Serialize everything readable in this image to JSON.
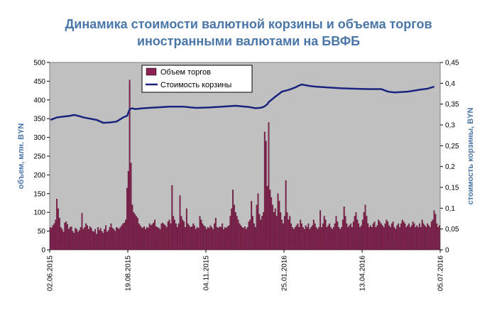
{
  "chart_data": {
    "type": "bar+line",
    "title_line1": "Динамика стоимости валютной корзины и объема торгов",
    "title_line2": "иностранными валютами на БВФБ",
    "ylabel_left": "объем, млн. BYN",
    "ylabel_right": "стоимость корзины, BYN",
    "y_left_ticks": [
      "0",
      "50",
      "100",
      "150",
      "200",
      "250",
      "300",
      "350",
      "400",
      "450",
      "500"
    ],
    "y_right_ticks": [
      "0",
      "0,05",
      "0,1",
      "0,15",
      "0,2",
      "0,25",
      "0,3",
      "0,35",
      "0,4",
      "0,45"
    ],
    "x_ticks": [
      "02.06.2015",
      "19.08.2015",
      "04.11.2015",
      "25.01.2016",
      "13.04.2016",
      "05.07.2016"
    ],
    "ylim_left": [
      0,
      500
    ],
    "ylim_right": [
      0,
      0.45
    ],
    "grid": false,
    "legend_position": "top-left",
    "series": [
      {
        "name": "Объем торгов",
        "type": "bar",
        "axis": "left",
        "color": "#8b2252",
        "values": [
          60,
          58,
          65,
          70,
          80,
          136,
          110,
          85,
          60,
          55,
          48,
          72,
          75,
          68,
          55,
          60,
          62,
          50,
          45,
          58,
          55,
          48,
          52,
          60,
          98,
          55,
          60,
          70,
          65,
          55,
          62,
          58,
          50,
          48,
          55,
          42,
          60,
          52,
          58,
          50,
          45,
          55,
          65,
          48,
          52,
          60,
          70,
          58,
          55,
          50,
          60,
          58,
          55,
          60,
          65,
          70,
          72,
          80,
          165,
          210,
          453,
          232,
          120,
          100,
          95,
          90,
          85,
          70,
          65,
          60,
          58,
          62,
          55,
          60,
          58,
          70,
          65,
          68,
          72,
          80,
          62,
          60,
          58,
          55,
          70,
          72,
          68,
          65,
          60,
          75,
          80,
          70,
          172,
          90,
          80,
          70,
          60,
          70,
          145,
          90,
          80,
          75,
          60,
          110,
          70,
          65,
          60,
          62,
          70,
          65,
          55,
          60,
          58,
          90,
          80,
          70,
          65,
          62,
          55,
          60,
          58,
          65,
          60,
          55,
          70,
          85,
          60,
          58,
          62,
          60,
          70,
          55,
          60,
          58,
          62,
          65,
          90,
          110,
          160,
          120,
          100,
          90,
          80,
          70,
          65,
          60,
          58,
          62,
          55,
          60,
          75,
          80,
          130,
          90,
          70,
          60,
          120,
          150,
          95,
          80,
          90,
          100,
          315,
          290,
          170,
          340,
          160,
          140,
          120,
          100,
          110,
          90,
          150,
          130,
          100,
          80,
          70,
          90,
          185,
          100,
          80,
          90,
          70,
          60,
          55,
          60,
          65,
          70,
          60,
          80,
          70,
          60,
          55,
          65,
          60,
          70,
          55,
          60,
          65,
          80,
          70,
          60,
          55,
          60,
          105,
          60,
          70,
          90,
          80,
          60,
          65,
          70,
          60,
          55,
          60,
          70,
          90,
          75,
          60,
          55,
          60,
          80,
          115,
          90,
          70,
          60,
          65,
          70,
          60,
          75,
          90,
          100,
          80,
          70,
          60,
          65,
          80,
          100,
          120,
          90,
          70,
          60,
          65,
          60,
          70,
          75,
          60,
          65,
          80,
          75,
          70,
          65,
          60,
          70,
          80,
          75,
          65,
          60,
          70,
          75,
          60,
          55,
          65,
          70,
          60,
          70,
          80,
          75,
          70,
          60,
          65,
          70,
          60,
          65,
          75,
          70,
          60,
          65,
          60,
          70,
          60,
          80,
          70,
          65,
          60,
          70,
          65,
          60,
          75,
          80,
          105,
          95,
          70,
          60,
          65
        ]
      },
      {
        "name": "Стоимость корзины",
        "type": "line",
        "axis": "right",
        "color": "#1a237e",
        "x_index": [
          0,
          5,
          10,
          15,
          18,
          22,
          25,
          30,
          35,
          40,
          45,
          50,
          55,
          58,
          60,
          62,
          64,
          70,
          80,
          90,
          100,
          110,
          120,
          130,
          140,
          150,
          155,
          158,
          160,
          162,
          164,
          165,
          170,
          175,
          180,
          185,
          188,
          190,
          192,
          195,
          200,
          210,
          220,
          230,
          240,
          250,
          255,
          260,
          270,
          280,
          285,
          290
        ],
        "values": [
          0.312,
          0.318,
          0.32,
          0.322,
          0.324,
          0.321,
          0.318,
          0.315,
          0.312,
          0.305,
          0.306,
          0.308,
          0.318,
          0.322,
          0.338,
          0.34,
          0.338,
          0.34,
          0.342,
          0.344,
          0.344,
          0.341,
          0.342,
          0.344,
          0.346,
          0.343,
          0.34,
          0.341,
          0.342,
          0.345,
          0.35,
          0.355,
          0.368,
          0.38,
          0.384,
          0.39,
          0.395,
          0.397,
          0.396,
          0.394,
          0.392,
          0.39,
          0.388,
          0.387,
          0.386,
          0.386,
          0.38,
          0.378,
          0.38,
          0.385,
          0.387,
          0.392
        ]
      }
    ]
  }
}
